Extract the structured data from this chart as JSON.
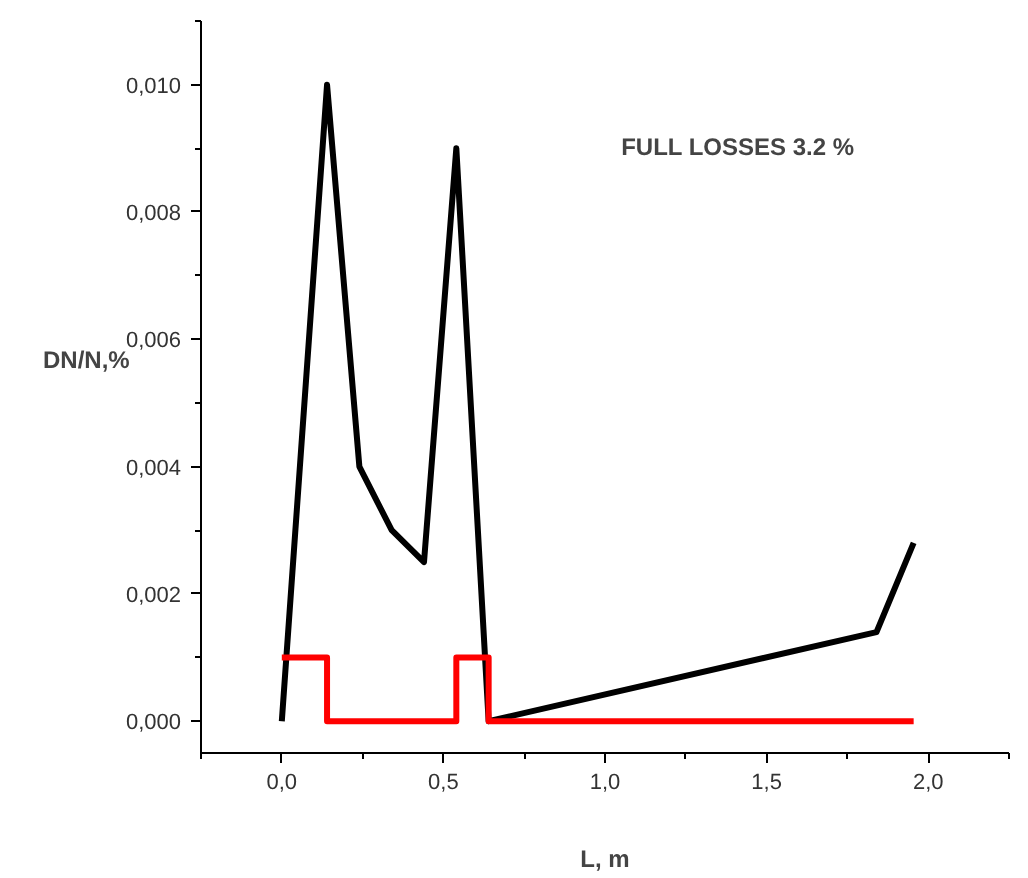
{
  "chart_data": {
    "type": "line",
    "xlabel": "L, m",
    "ylabel": "DN/N,%",
    "annotations": [
      "FULL LOSSES 3.2 %"
    ],
    "xlim": [
      -0.25,
      2.25
    ],
    "ylim": [
      -0.0005,
      0.011
    ],
    "xticks": [
      {
        "value": 0,
        "label": "0,0"
      },
      {
        "value": 0.5,
        "label": "0,5"
      },
      {
        "value": 1.0,
        "label": "1,0"
      },
      {
        "value": 1.5,
        "label": "1,5"
      },
      {
        "value": 2.0,
        "label": "2,0"
      }
    ],
    "yticks": [
      {
        "value": 0,
        "label": "0,000"
      },
      {
        "value": 0.002,
        "label": "0,002"
      },
      {
        "value": 0.004,
        "label": "0,004"
      },
      {
        "value": 0.006,
        "label": "0,006"
      },
      {
        "value": 0.008,
        "label": "0,008"
      },
      {
        "value": 0.01,
        "label": "0,010"
      }
    ],
    "grid": false,
    "marker": "none",
    "line_style": "solid",
    "series": [
      {
        "color": "#000000",
        "x": [
          0,
          0.14,
          0.24,
          0.34,
          0.44,
          0.54,
          0.64,
          1.84,
          1.955
        ],
        "values": [
          0,
          0.01,
          0.004,
          0.003,
          0.0025,
          0.009,
          0,
          0.0014,
          0.0028
        ]
      },
      {
        "type": "step",
        "color": "#ff0000",
        "x": [
          0,
          0.14,
          0.54,
          0.64,
          1.955
        ],
        "values": [
          0.001,
          0,
          0.001,
          0,
          0
        ]
      }
    ]
  }
}
